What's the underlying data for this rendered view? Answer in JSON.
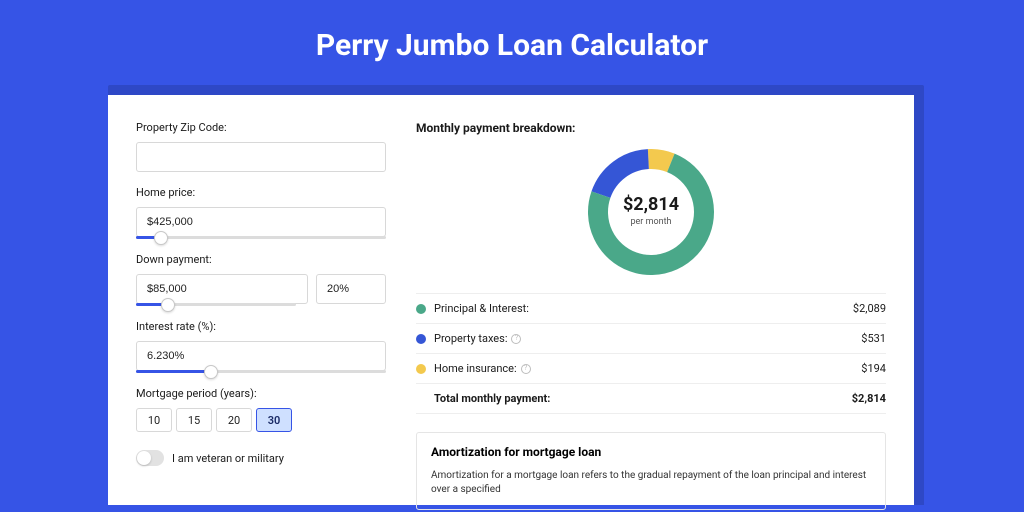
{
  "page": {
    "title": "Perry Jumbo Loan Calculator",
    "background_color": "#3654e6",
    "shadow_color": "#2e48c6",
    "card_color": "#ffffff"
  },
  "form": {
    "zip": {
      "label": "Property Zip Code:",
      "value": ""
    },
    "home_price": {
      "label": "Home price:",
      "value": "$425,000",
      "slider_pct": 10
    },
    "down_payment": {
      "label": "Down payment:",
      "amount": "$85,000",
      "pct": "20%",
      "slider_pct": 20
    },
    "interest_rate": {
      "label": "Interest rate (%):",
      "value": "6.230%",
      "slider_pct": 30
    },
    "mortgage_period": {
      "label": "Mortgage period (years):",
      "options": [
        "10",
        "15",
        "20",
        "30"
      ],
      "active_index": 3
    },
    "veteran": {
      "label": "I am veteran or military",
      "on": false
    }
  },
  "breakdown": {
    "title": "Monthly payment breakdown:",
    "center_amount": "$2,814",
    "center_sub": "per month",
    "donut": {
      "size": 126,
      "thickness": 20,
      "slices": [
        {
          "label": "Principal & Interest:",
          "value": "$2,089",
          "color": "#4aa889",
          "pct": 74.2,
          "has_info": false
        },
        {
          "label": "Property taxes:",
          "value": "$531",
          "color": "#3556d6",
          "pct": 18.9,
          "has_info": true
        },
        {
          "label": "Home insurance:",
          "value": "$194",
          "color": "#f3c94e",
          "pct": 6.9,
          "has_info": true
        }
      ]
    },
    "total": {
      "label": "Total monthly payment:",
      "value": "$2,814"
    }
  },
  "amortization": {
    "title": "Amortization for mortgage loan",
    "text": "Amortization for a mortgage loan refers to the gradual repayment of the loan principal and interest over a specified"
  }
}
